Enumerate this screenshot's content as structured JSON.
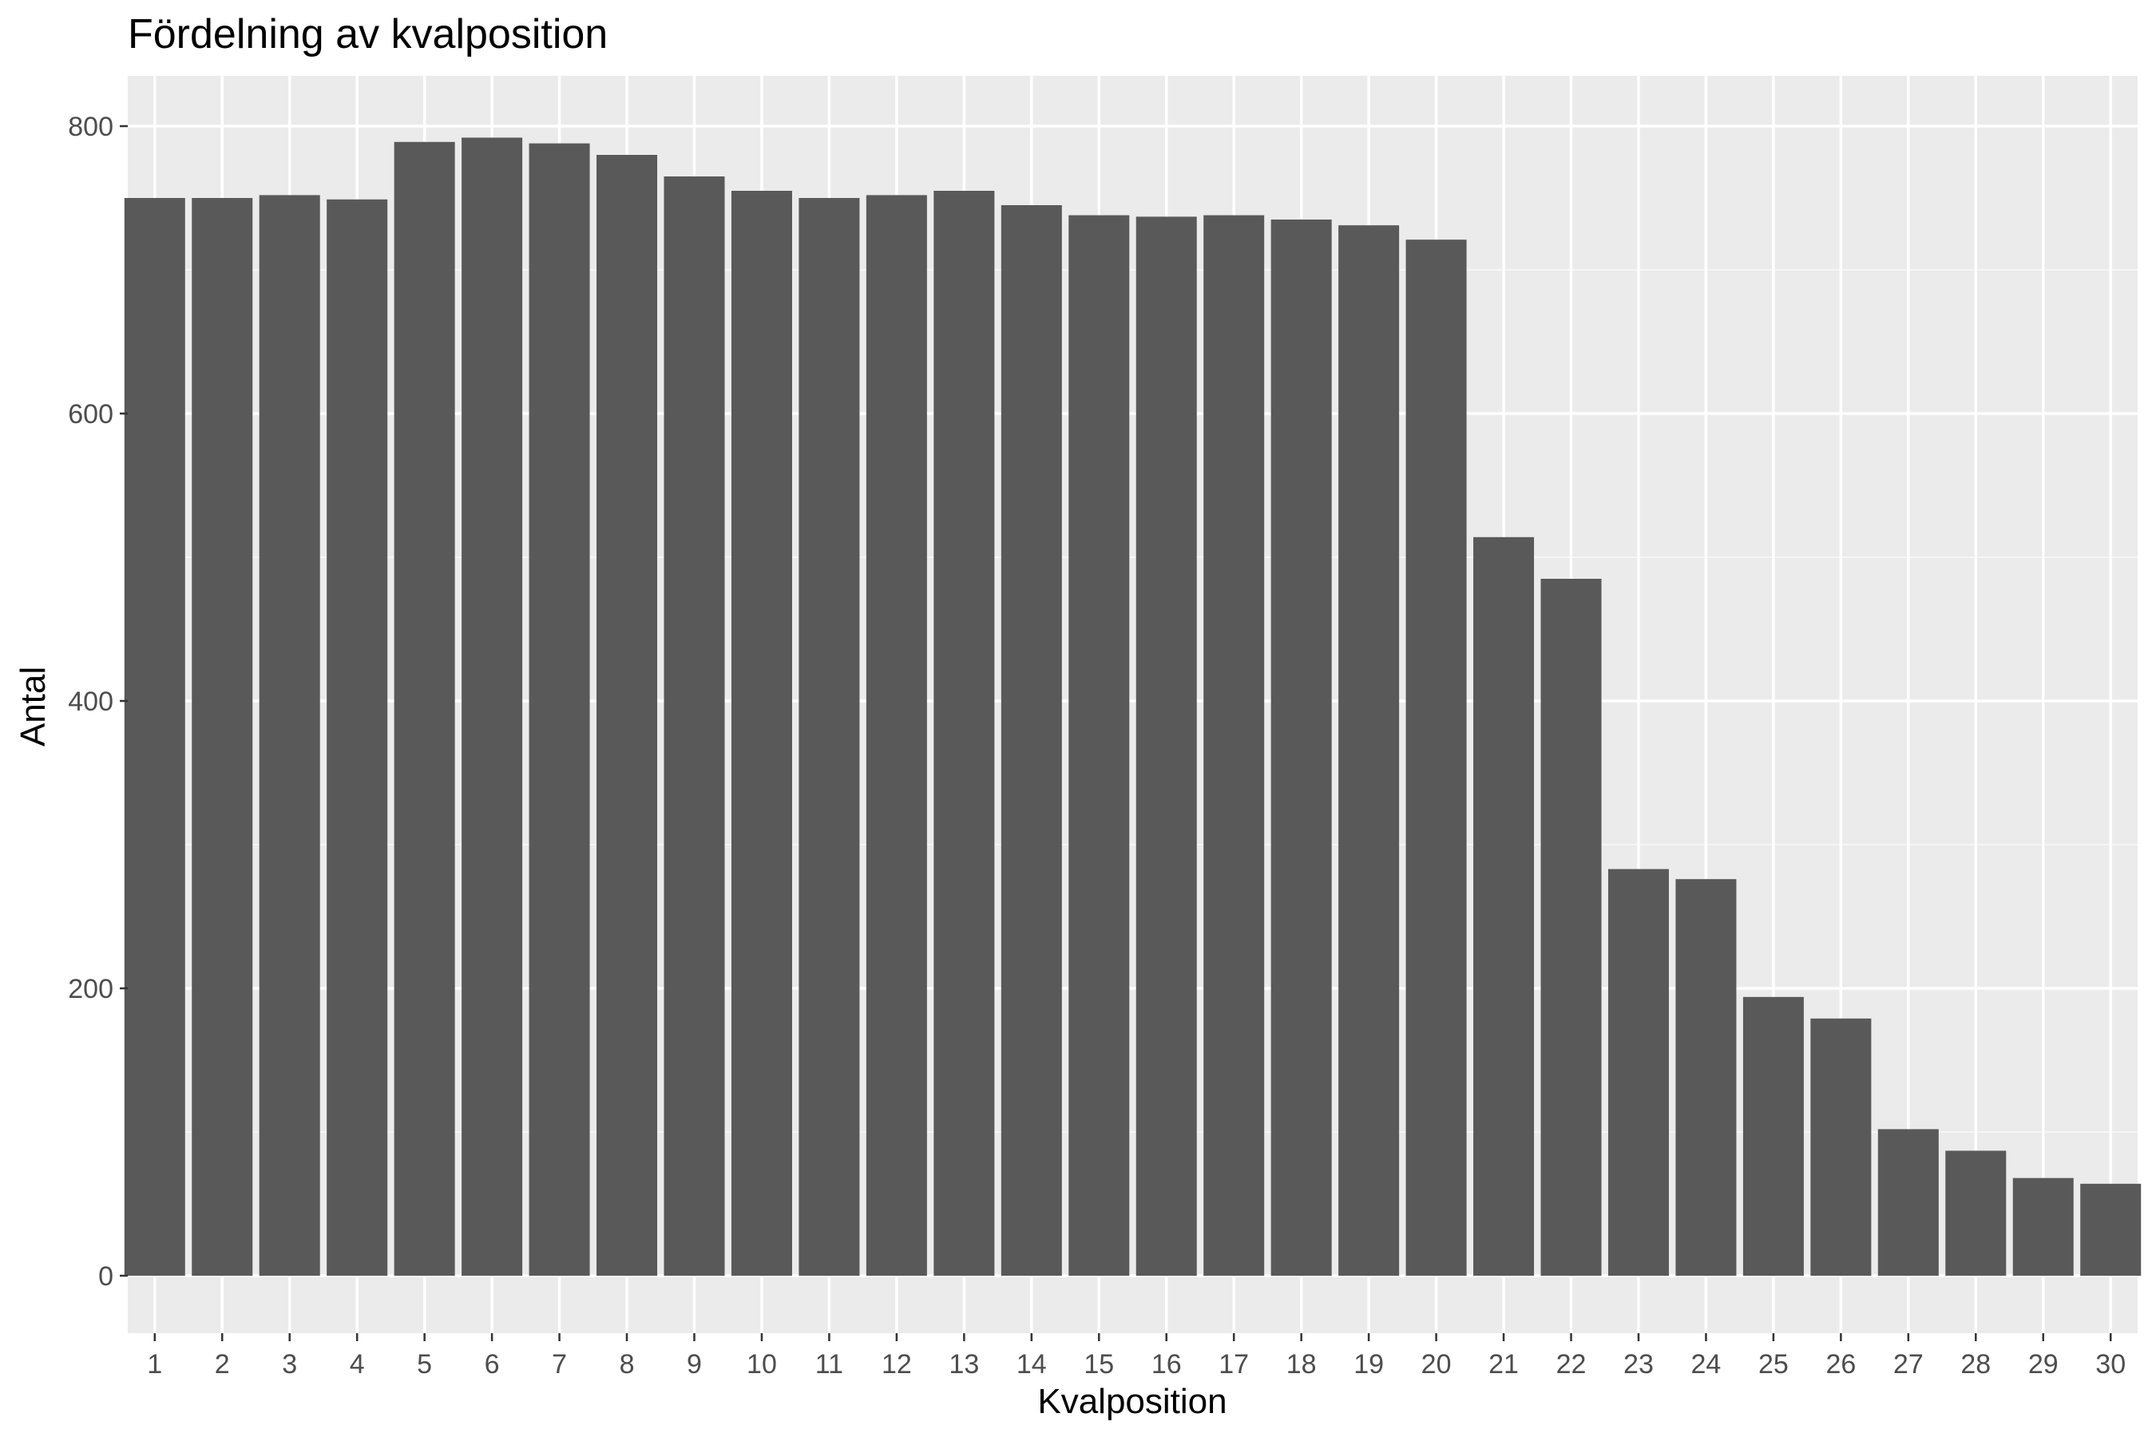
{
  "colors": {
    "panel_background": "#ebebeb",
    "grid_major": "#ffffff",
    "grid_minor": "#f5f5f5",
    "bar_fill": "#595959",
    "tick_color": "#333333"
  },
  "chart_data": {
    "type": "bar",
    "title": "Fördelning av kvalposition",
    "xlabel": "Kvalposition",
    "ylabel": "Antal",
    "categories": [
      "1",
      "2",
      "3",
      "4",
      "5",
      "6",
      "7",
      "8",
      "9",
      "10",
      "11",
      "12",
      "13",
      "14",
      "15",
      "16",
      "17",
      "18",
      "19",
      "20",
      "21",
      "22",
      "23",
      "24",
      "25",
      "26",
      "27",
      "28",
      "29",
      "30"
    ],
    "values": [
      750,
      750,
      752,
      749,
      789,
      792,
      788,
      780,
      765,
      755,
      750,
      752,
      755,
      745,
      738,
      737,
      738,
      735,
      731,
      721,
      514,
      485,
      283,
      276,
      194,
      179,
      102,
      87,
      68,
      64
    ],
    "ylim": [
      -40,
      835
    ],
    "yticks": [
      0,
      200,
      400,
      600,
      800
    ],
    "yticks_minor": [
      100,
      300,
      500,
      700
    ],
    "grid": true,
    "legend": "none"
  }
}
